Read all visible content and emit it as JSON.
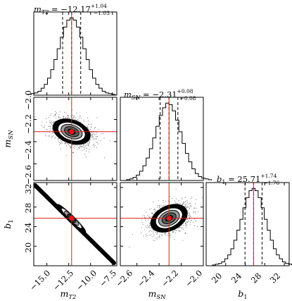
{
  "chart_data": {
    "type": "corner",
    "parameters": [
      {
        "symbol": "m",
        "subscript": "T2",
        "label": "m_T2",
        "median": "12.17",
        "sign": "−",
        "err_plus": "+1.04",
        "err_minus": "−1.03",
        "true": -12.17,
        "lo": -13.2,
        "hi": -11.13,
        "range": [
          -16.5,
          -7
        ],
        "ticks": [
          -15.0,
          -12.5,
          -10.0,
          -7.5
        ]
      },
      {
        "symbol": "m",
        "subscript": "SN",
        "label": "m_SN",
        "median": "2.31",
        "sign": "−",
        "err_plus": "+0.08",
        "err_minus": "−0.08",
        "true": -2.31,
        "lo": -2.39,
        "hi": -2.23,
        "range": [
          -2.75,
          -2.0
        ],
        "ticks": [
          -2.6,
          -2.4,
          -2.2,
          -2.0
        ]
      },
      {
        "symbol": "b",
        "subscript": "1",
        "label": "b_1",
        "median": "25.71",
        "sign": "",
        "err_plus": "+1.74",
        "err_minus": "−1.76",
        "true": 25.71,
        "lo": 23.95,
        "hi": 27.45,
        "range": [
          16,
          33
        ],
        "ticks": [
          20,
          24,
          28,
          32
        ]
      }
    ],
    "tick_labels": {
      "mT2": [
        "−15.0",
        "−12.5",
        "−10.0",
        "−7.5"
      ],
      "mSN": [
        "−2.6",
        "−2.4",
        "−2.2",
        "−2.0"
      ],
      "b1": [
        "20",
        "24",
        "28",
        "32"
      ]
    },
    "histograms": {
      "mT2": [
        1,
        2,
        3,
        5,
        9,
        14,
        22,
        33,
        46,
        60,
        75,
        88,
        97,
        100,
        97,
        88,
        75,
        60,
        46,
        33,
        22,
        14,
        9,
        5,
        3,
        2,
        1
      ],
      "mSN": [
        1,
        2,
        4,
        7,
        12,
        19,
        29,
        41,
        55,
        70,
        84,
        94,
        100,
        98,
        90,
        78,
        63,
        48,
        35,
        24,
        15,
        9,
        5,
        3,
        2,
        1
      ],
      "b1": [
        1,
        2,
        3,
        5,
        9,
        14,
        22,
        33,
        46,
        60,
        75,
        88,
        97,
        100,
        97,
        88,
        75,
        60,
        46,
        33,
        22,
        14,
        9,
        5,
        3,
        2,
        1
      ]
    },
    "truth_color": "#e41a1c",
    "quantile_style": "dashed",
    "density_color": "#000000"
  }
}
